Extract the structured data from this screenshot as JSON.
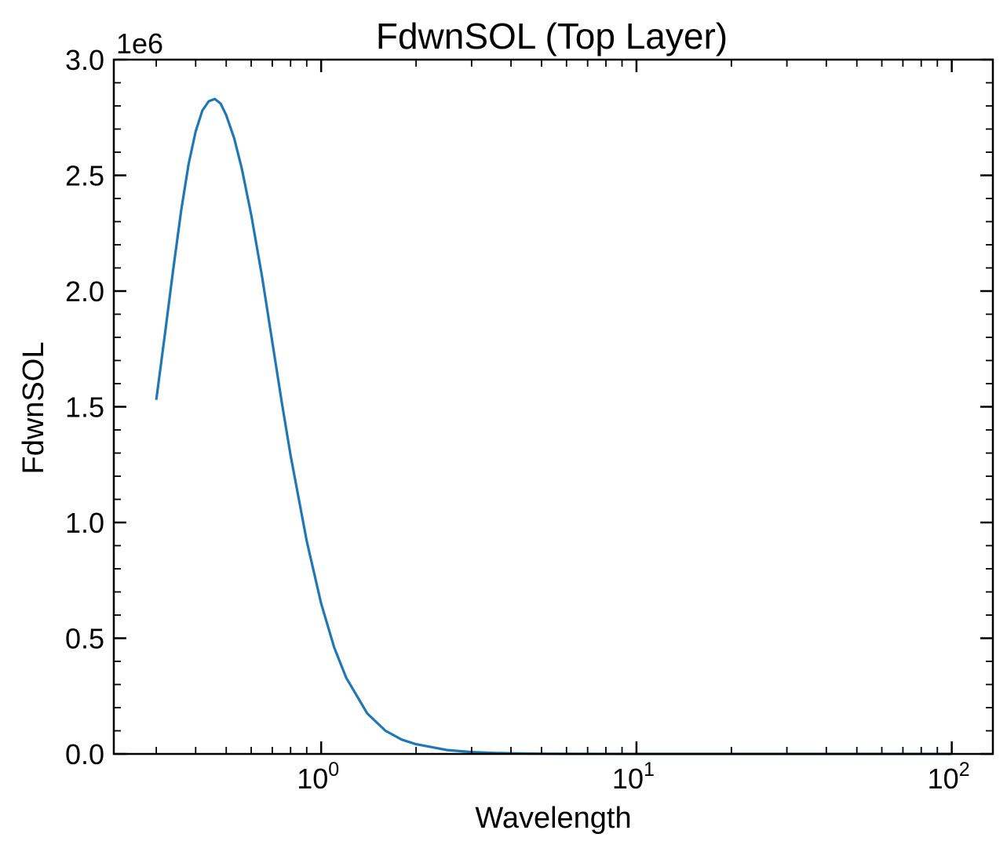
{
  "chart_data": {
    "type": "line",
    "title": "FdwnSOL (Top Layer)",
    "xlabel": "Wavelength",
    "ylabel": "FdwnSOL",
    "x_scale": "log",
    "y_offset_text": "1e6",
    "xlim": [
      0.22,
      135
    ],
    "ylim": [
      0,
      3000000
    ],
    "x_ticks": [
      {
        "base": "10",
        "exp": "0",
        "value": 1
      },
      {
        "base": "10",
        "exp": "1",
        "value": 10
      },
      {
        "base": "10",
        "exp": "2",
        "value": 100
      }
    ],
    "y_ticks": [
      {
        "label": "0.0",
        "value": 0
      },
      {
        "label": "0.5",
        "value": 500000
      },
      {
        "label": "1.0",
        "value": 1000000
      },
      {
        "label": "1.5",
        "value": 1500000
      },
      {
        "label": "2.0",
        "value": 2000000
      },
      {
        "label": "2.5",
        "value": 2500000
      },
      {
        "label": "3.0",
        "value": 3000000
      }
    ],
    "grid": false,
    "series": [
      {
        "color": "#1f77b4",
        "x": [
          0.3,
          0.32,
          0.34,
          0.36,
          0.38,
          0.4,
          0.42,
          0.44,
          0.46,
          0.48,
          0.5,
          0.53,
          0.56,
          0.6,
          0.65,
          0.7,
          0.75,
          0.8,
          0.9,
          1.0,
          1.1,
          1.2,
          1.4,
          1.6,
          1.8,
          2.0,
          2.5,
          3.0,
          3.5,
          4.0,
          5.0,
          6.0,
          8.0,
          10,
          15,
          20,
          30,
          50,
          100
        ],
        "y": [
          1530000,
          1820000,
          2100000,
          2350000,
          2550000,
          2690000,
          2780000,
          2820000,
          2830000,
          2810000,
          2760000,
          2660000,
          2530000,
          2330000,
          2060000,
          1780000,
          1520000,
          1290000,
          920000,
          650000,
          460000,
          330000,
          175000,
          100000,
          62000,
          42000,
          17000,
          8000,
          4300,
          2500,
          1050,
          520,
          170,
          70,
          15,
          5,
          1,
          0.1,
          0.01
        ]
      }
    ]
  }
}
